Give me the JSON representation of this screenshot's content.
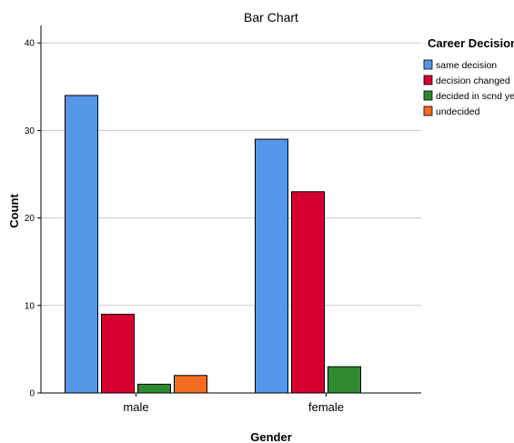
{
  "chart_data": {
    "type": "bar",
    "title": "Bar Chart",
    "xlabel": "Gender",
    "ylabel": "Count",
    "ylim": [
      0,
      42
    ],
    "yticks": [
      0,
      10,
      20,
      30,
      40
    ],
    "grid": true,
    "legend_title": "Career Decision",
    "legend_position": "top-right",
    "categories": [
      "male",
      "female"
    ],
    "series": [
      {
        "name": "same decision",
        "color": "#5596e6",
        "values": [
          34,
          29
        ]
      },
      {
        "name": "decision changed",
        "color": "#d5002f",
        "values": [
          9,
          23
        ]
      },
      {
        "name": "decided in scnd year",
        "color": "#2f8a2f",
        "values": [
          1,
          3
        ]
      },
      {
        "name": "undecided",
        "color": "#f26d21",
        "values": [
          2,
          0
        ]
      }
    ]
  }
}
